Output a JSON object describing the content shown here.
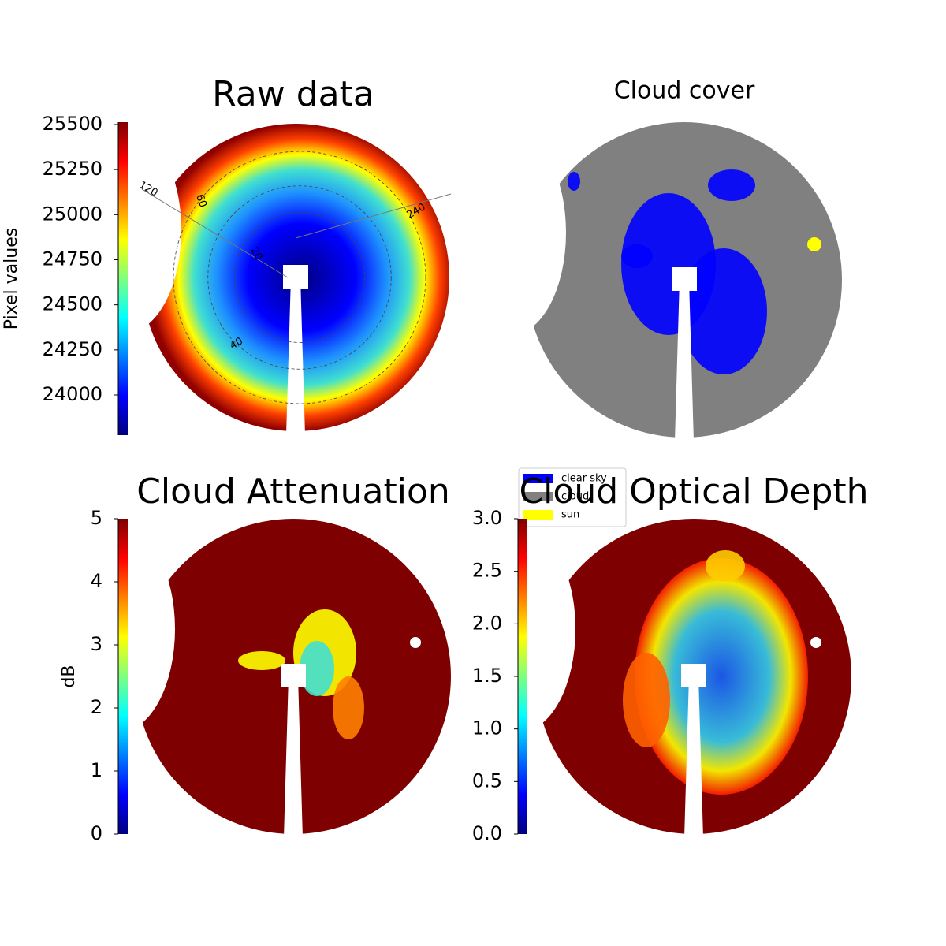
{
  "chart_data": [
    {
      "type": "image",
      "title": "Raw data",
      "colorbar": {
        "label": "Pixel values",
        "colormap": "jet",
        "ylim": [
          23777,
          25513
        ],
        "yticks": [
          24000,
          24250,
          24500,
          24750,
          25000,
          25250,
          25500
        ]
      },
      "annotations": [
        "120",
        "240",
        "60",
        "20",
        "40"
      ]
    },
    {
      "type": "image",
      "title": "Cloud cover",
      "series": [
        {
          "name": "clear sky",
          "color": "#0000ff"
        },
        {
          "name": "cloud",
          "color": "#808080"
        },
        {
          "name": "sun",
          "color": "#ffff00"
        }
      ]
    },
    {
      "type": "image",
      "title": "Cloud Attenuation",
      "colorbar": {
        "label": "dB",
        "colormap": "jet",
        "ylim": [
          0,
          5
        ],
        "yticks": [
          0,
          1,
          2,
          3,
          4,
          5
        ]
      }
    },
    {
      "type": "image",
      "title": "Cloud Optical Depth",
      "colorbar": {
        "colormap": "jet",
        "ylim": [
          0,
          3
        ],
        "yticks": [
          {
            "value": 0,
            "label": "0.0"
          },
          {
            "value": 0.5,
            "label": "0.5"
          },
          {
            "value": 1,
            "label": "1.0"
          },
          {
            "value": 1.5,
            "label": "1.5"
          },
          {
            "value": 2,
            "label": "2.0"
          },
          {
            "value": 2.5,
            "label": "2.5"
          },
          {
            "value": 3,
            "label": "3.0"
          }
        ]
      }
    }
  ]
}
